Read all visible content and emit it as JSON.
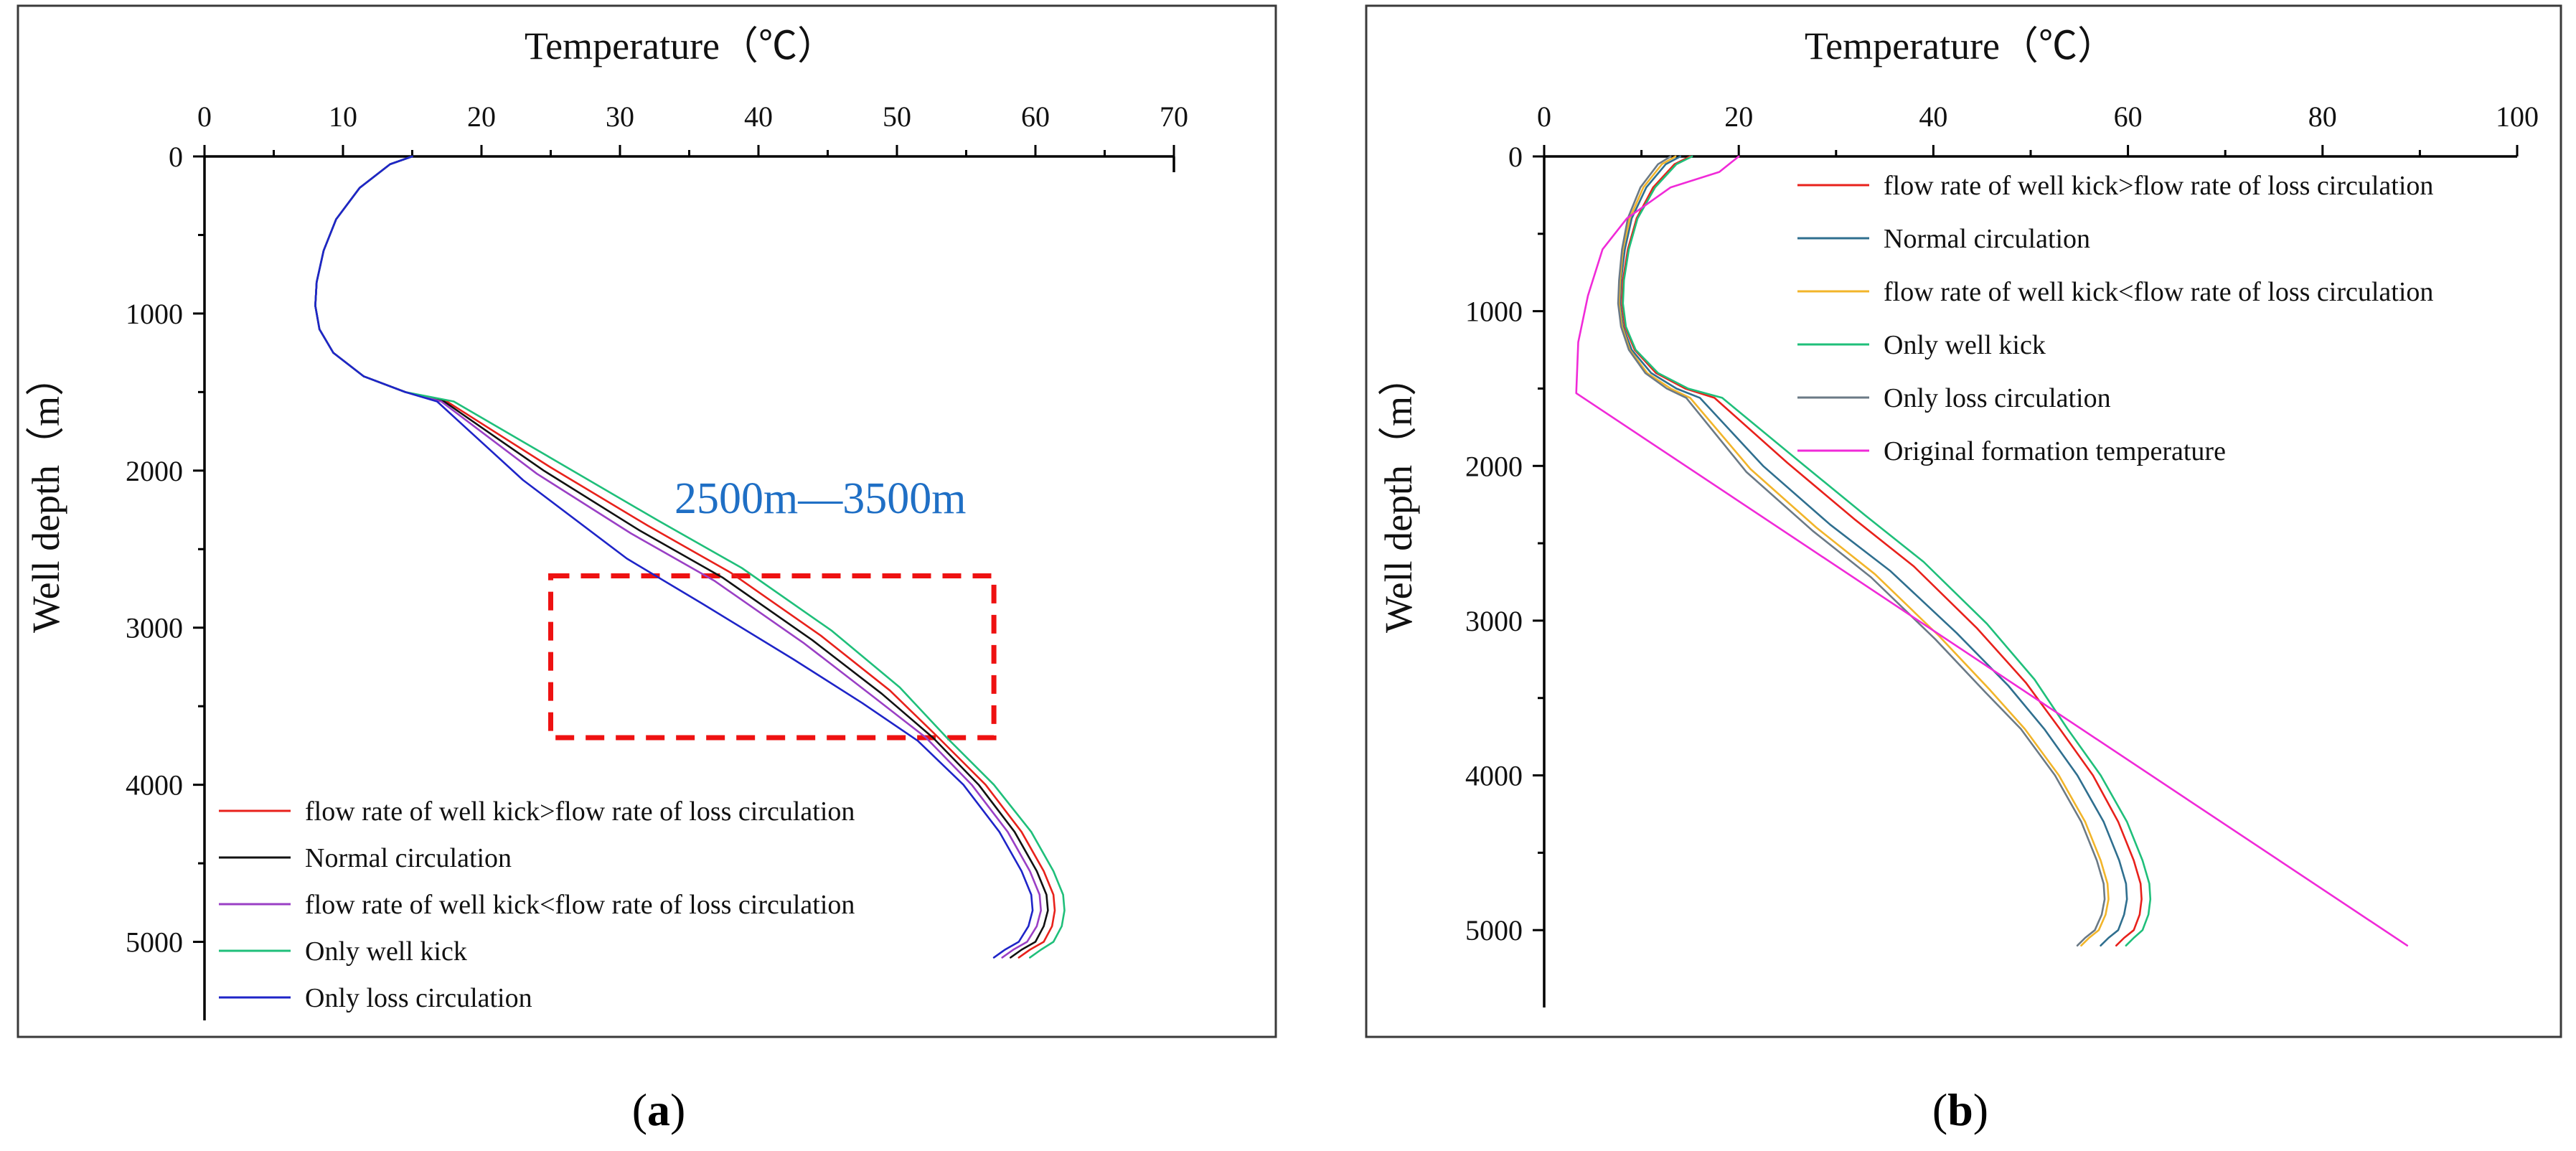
{
  "figure": {
    "panel_labels": [
      {
        "open": "(",
        "letter": "a",
        "close": ")"
      },
      {
        "open": "(",
        "letter": "b",
        "close": ")"
      }
    ]
  },
  "chart_data": [
    {
      "type": "line",
      "panel": "a",
      "xlabel": "Temperature（℃）",
      "ylabel": "Well depth（m）",
      "xlim": [
        0,
        70
      ],
      "ylim": [
        5500,
        0
      ],
      "x_ticks": [
        0,
        10,
        20,
        30,
        40,
        50,
        60,
        70
      ],
      "y_ticks": [
        0,
        1000,
        2000,
        3000,
        4000,
        5000
      ],
      "x_axis_position": "top",
      "legend_position": "bottom-left",
      "annotation": {
        "text": "2500m—3500m",
        "color": "#1f6fc5",
        "box": {
          "x": [
            25,
            57
          ],
          "y": [
            2670,
            3700
          ],
          "color": "#ee1111"
        }
      },
      "series": [
        {
          "name": "flow rate of well kick>flow rate of loss circulation",
          "color": "#e8211b",
          "x": [
            15.0,
            13.4,
            11.2,
            9.5,
            8.6,
            8.1,
            8.0,
            8.3,
            9.3,
            11.5,
            14.5,
            17.5,
            25.0,
            32.0,
            38.0,
            44.5,
            49.5,
            53.0,
            56.4,
            59.0,
            60.6,
            61.3,
            61.4,
            61.2,
            60.6,
            59.6,
            58.8
          ],
          "y": [
            0,
            50,
            200,
            400,
            600,
            800,
            950,
            1100,
            1250,
            1400,
            1500,
            1560,
            1980,
            2350,
            2650,
            3050,
            3400,
            3700,
            4000,
            4300,
            4550,
            4700,
            4800,
            4900,
            5000,
            5050,
            5100
          ]
        },
        {
          "name": "Normal circulation",
          "color": "#111111",
          "x": [
            15.0,
            13.4,
            11.2,
            9.5,
            8.6,
            8.1,
            8.0,
            8.3,
            9.3,
            11.5,
            14.5,
            17.3,
            24.5,
            31.4,
            37.4,
            43.9,
            48.9,
            52.6,
            55.9,
            58.5,
            60.1,
            60.8,
            60.9,
            60.6,
            60.0,
            59.0,
            58.2
          ],
          "y": [
            0,
            50,
            200,
            400,
            600,
            800,
            950,
            1100,
            1250,
            1400,
            1500,
            1560,
            2000,
            2380,
            2680,
            3080,
            3420,
            3700,
            4000,
            4300,
            4550,
            4700,
            4800,
            4900,
            5000,
            5050,
            5100
          ]
        },
        {
          "name": "flow rate of well kick<flow rate of loss circulation",
          "color": "#9a3fc5",
          "x": [
            15.0,
            13.4,
            11.2,
            9.5,
            8.6,
            8.1,
            8.0,
            8.3,
            9.3,
            11.5,
            14.5,
            17.1,
            24.0,
            30.8,
            36.8,
            43.3,
            48.3,
            52.1,
            55.4,
            58.0,
            59.6,
            60.3,
            60.4,
            60.1,
            59.4,
            58.4,
            57.6
          ],
          "y": [
            0,
            50,
            200,
            400,
            600,
            800,
            950,
            1100,
            1250,
            1400,
            1500,
            1560,
            2020,
            2400,
            2700,
            3100,
            3440,
            3700,
            4000,
            4300,
            4550,
            4700,
            4800,
            4900,
            5000,
            5050,
            5100
          ]
        },
        {
          "name": "Only well kick",
          "color": "#1fbf7a",
          "x": [
            15.0,
            13.4,
            11.2,
            9.5,
            8.6,
            8.1,
            8.0,
            8.3,
            9.3,
            11.5,
            14.5,
            18.0,
            25.8,
            32.8,
            38.8,
            45.3,
            50.2,
            53.6,
            57.0,
            59.7,
            61.3,
            62.0,
            62.1,
            61.9,
            61.3,
            60.4,
            59.6
          ],
          "y": [
            0,
            50,
            200,
            400,
            600,
            800,
            950,
            1100,
            1250,
            1400,
            1500,
            1560,
            1960,
            2320,
            2620,
            3020,
            3380,
            3700,
            4000,
            4300,
            4550,
            4700,
            4800,
            4900,
            5000,
            5050,
            5100
          ]
        },
        {
          "name": "Only loss circulation",
          "color": "#1e24c8",
          "x": [
            15.0,
            13.4,
            11.2,
            9.5,
            8.6,
            8.1,
            8.0,
            8.3,
            9.3,
            11.5,
            14.5,
            16.8,
            23.0,
            30.5,
            36.0,
            42.5,
            47.5,
            51.5,
            54.8,
            57.4,
            59.0,
            59.7,
            59.8,
            59.5,
            58.8,
            57.8,
            57.0
          ],
          "y": [
            0,
            50,
            200,
            400,
            600,
            800,
            950,
            1100,
            1250,
            1400,
            1500,
            1560,
            2060,
            2560,
            2850,
            3200,
            3480,
            3720,
            4000,
            4300,
            4550,
            4700,
            4800,
            4900,
            5000,
            5050,
            5100
          ]
        }
      ]
    },
    {
      "type": "line",
      "panel": "b",
      "xlabel": "Temperature（℃）",
      "ylabel": "Well depth（m）",
      "xlim": [
        0,
        100
      ],
      "ylim": [
        5500,
        0
      ],
      "x_ticks": [
        0,
        20,
        40,
        60,
        80,
        100
      ],
      "y_ticks": [
        0,
        1000,
        2000,
        3000,
        4000,
        5000
      ],
      "x_axis_position": "top",
      "legend_position": "top-right",
      "series": [
        {
          "name": "flow rate of well kick>flow rate of loss circulation",
          "color": "#e8211b",
          "x": [
            15.0,
            13.4,
            11.2,
            9.5,
            8.6,
            8.1,
            8.0,
            8.3,
            9.3,
            11.5,
            14.5,
            17.5,
            25.0,
            32.0,
            38.0,
            44.5,
            49.5,
            53.0,
            56.4,
            59.0,
            60.6,
            61.3,
            61.4,
            61.2,
            60.6,
            59.6,
            58.8
          ],
          "y": [
            0,
            50,
            200,
            400,
            600,
            800,
            950,
            1100,
            1250,
            1400,
            1500,
            1560,
            1980,
            2350,
            2650,
            3050,
            3400,
            3700,
            4000,
            4300,
            4550,
            4700,
            4800,
            4900,
            5000,
            5050,
            5100
          ]
        },
        {
          "name": "Normal circulation",
          "color": "#2f6f8f",
          "x": [
            14.0,
            12.5,
            10.5,
            9.0,
            8.3,
            7.9,
            7.8,
            8.1,
            9.0,
            11.0,
            13.6,
            16.0,
            22.5,
            29.4,
            35.6,
            42.4,
            47.7,
            51.4,
            54.8,
            57.5,
            59.1,
            59.8,
            59.9,
            59.6,
            59.0,
            58.0,
            57.2
          ],
          "y": [
            0,
            50,
            200,
            400,
            600,
            800,
            950,
            1100,
            1250,
            1400,
            1500,
            1560,
            2000,
            2380,
            2680,
            3080,
            3420,
            3700,
            4000,
            4300,
            4550,
            4700,
            4800,
            4900,
            5000,
            5050,
            5100
          ]
        },
        {
          "name": "flow rate of well kick<flow rate of loss circulation",
          "color": "#f2b52a",
          "x": [
            13.5,
            12.1,
            10.2,
            8.8,
            8.1,
            7.8,
            7.7,
            8.0,
            8.8,
            10.6,
            13.0,
            15.0,
            21.2,
            28.0,
            34.0,
            40.6,
            45.7,
            49.4,
            52.9,
            55.6,
            57.2,
            57.9,
            58.0,
            57.7,
            57.0,
            56.0,
            55.2
          ],
          "y": [
            0,
            50,
            200,
            400,
            600,
            800,
            950,
            1100,
            1250,
            1400,
            1500,
            1560,
            2020,
            2400,
            2700,
            3100,
            3440,
            3700,
            4000,
            4300,
            4550,
            4700,
            4800,
            4900,
            5000,
            5050,
            5100
          ]
        },
        {
          "name": "Only well kick",
          "color": "#1fbf7a",
          "x": [
            15.2,
            13.6,
            11.4,
            9.6,
            8.7,
            8.2,
            8.1,
            8.4,
            9.4,
            11.7,
            14.8,
            18.3,
            26.0,
            33.0,
            39.0,
            45.5,
            50.4,
            53.8,
            57.2,
            59.9,
            61.5,
            62.2,
            62.3,
            62.1,
            61.5,
            60.6,
            59.8
          ],
          "y": [
            0,
            50,
            200,
            400,
            600,
            800,
            950,
            1100,
            1250,
            1400,
            1500,
            1560,
            1960,
            2320,
            2620,
            3020,
            3380,
            3700,
            4000,
            4300,
            4550,
            4700,
            4800,
            4900,
            5000,
            5050,
            5100
          ]
        },
        {
          "name": "Only loss circulation",
          "color": "#6b7a86",
          "x": [
            13.0,
            11.7,
            9.9,
            8.6,
            8.0,
            7.7,
            7.6,
            7.9,
            8.7,
            10.4,
            12.6,
            14.6,
            20.8,
            27.6,
            33.6,
            40.2,
            45.3,
            49.0,
            52.5,
            55.2,
            56.8,
            57.5,
            57.6,
            57.3,
            56.6,
            55.6,
            54.8
          ],
          "y": [
            0,
            50,
            200,
            400,
            600,
            800,
            950,
            1100,
            1250,
            1400,
            1500,
            1560,
            2040,
            2420,
            2720,
            3120,
            3460,
            3700,
            4000,
            4300,
            4550,
            4700,
            4800,
            4900,
            5000,
            5050,
            5100
          ]
        },
        {
          "name": "Original formation temperature",
          "color": "#f02ad8",
          "x": [
            20.0,
            18.0,
            13.0,
            8.5,
            6.0,
            4.5,
            3.5,
            3.3,
            88.7
          ],
          "y": [
            0,
            100,
            200,
            400,
            600,
            900,
            1200,
            1530,
            5100
          ]
        }
      ]
    }
  ]
}
